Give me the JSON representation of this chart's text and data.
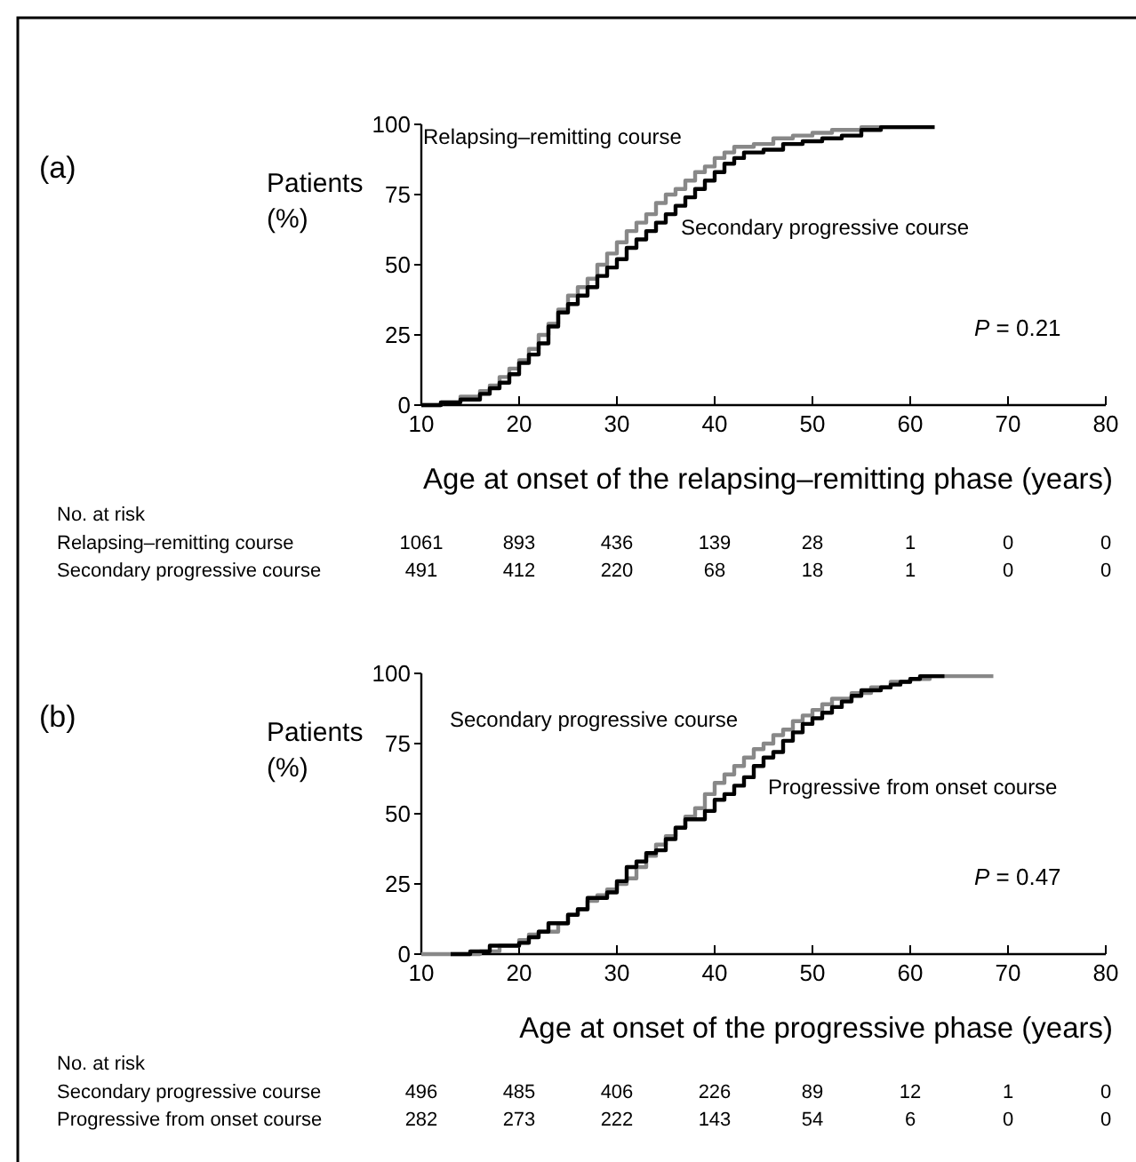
{
  "chart_data": [
    {
      "type": "step",
      "ylabel": "Patients (%)",
      "xlabel": "Age at onset of the relapsing–remitting phase (years)",
      "xlim": [
        10,
        80
      ],
      "xticks": [
        10,
        20,
        30,
        40,
        50,
        60,
        70,
        80
      ],
      "ylim": [
        0,
        100
      ],
      "yticks": [
        0,
        25,
        50,
        75,
        100
      ],
      "grid": false,
      "series": [
        {
          "name": "Relapsing–remitting course",
          "color": "#888888",
          "x": [
            10,
            12,
            14,
            16,
            17,
            18,
            19,
            20,
            21,
            22,
            23,
            24,
            25,
            26,
            27,
            28,
            29,
            30,
            31,
            32,
            33,
            34,
            35,
            36,
            37,
            38,
            39,
            40,
            41,
            42,
            44,
            46,
            48,
            50,
            52,
            55,
            60
          ],
          "values": [
            0,
            1,
            3,
            5,
            7,
            10,
            13,
            16,
            20,
            25,
            29,
            34,
            39,
            42,
            45,
            50,
            54,
            58,
            62,
            65,
            68,
            72,
            75,
            77,
            80,
            83,
            85,
            88,
            90,
            92,
            93,
            95,
            96,
            97,
            98,
            99,
            99
          ]
        },
        {
          "name": "Secondary progressive course",
          "color": "#000000",
          "x": [
            10,
            12,
            14,
            16,
            17,
            18,
            19,
            20,
            21,
            22,
            23,
            24,
            25,
            26,
            27,
            28,
            29,
            30,
            31,
            32,
            33,
            34,
            35,
            36,
            37,
            38,
            39,
            40,
            41,
            42,
            43,
            45,
            47,
            49,
            51,
            53,
            55,
            57,
            62.5
          ],
          "values": [
            0,
            1,
            2,
            4,
            6,
            8,
            11,
            15,
            18,
            22,
            28,
            33,
            36,
            39,
            42,
            46,
            49,
            52,
            56,
            59,
            62,
            65,
            68,
            71,
            74,
            77,
            80,
            83,
            86,
            88,
            90,
            91,
            93,
            94,
            95,
            96,
            98,
            99,
            99
          ]
        }
      ],
      "annotations": [
        "P = 0.21",
        "No. at risk",
        "Relapsing–remitting course",
        "1061",
        "893",
        "436",
        "139",
        "28",
        "1",
        "0",
        "0",
        "Secondary progressive course",
        "491",
        "412",
        "220",
        "68",
        "18",
        "1",
        "0",
        "0",
        "(a)"
      ]
    },
    {
      "type": "step",
      "ylabel": "Patients (%)",
      "xlabel": "Age at onset of the progressive phase (years)",
      "xlim": [
        10,
        80
      ],
      "xticks": [
        10,
        20,
        30,
        40,
        50,
        60,
        70,
        80
      ],
      "ylim": [
        0,
        100
      ],
      "yticks": [
        0,
        25,
        50,
        75,
        100
      ],
      "grid": false,
      "series": [
        {
          "name": "Secondary progressive course",
          "color": "#888888",
          "x": [
            10,
            16,
            18,
            20,
            21,
            22,
            24,
            25,
            26,
            27,
            28,
            29,
            30,
            31,
            32,
            33,
            34,
            35,
            36,
            37,
            38,
            39,
            40,
            41,
            42,
            43,
            44,
            45,
            46,
            47,
            48,
            49,
            50,
            51,
            52,
            54,
            56,
            58,
            60,
            62,
            68.5
          ],
          "values": [
            0,
            1,
            3,
            5,
            7,
            8,
            11,
            14,
            16,
            19,
            21,
            23,
            25,
            27,
            31,
            35,
            39,
            42,
            45,
            49,
            52,
            57,
            61,
            64,
            67,
            70,
            73,
            75,
            78,
            80,
            83,
            85,
            87,
            89,
            91,
            93,
            95,
            97,
            98,
            99,
            99
          ]
        },
        {
          "name": "Progressive from onset course",
          "color": "#000000",
          "x": [
            13,
            15,
            17,
            20,
            21,
            22,
            23,
            25,
            26,
            27,
            29,
            30,
            31,
            32,
            33,
            34,
            35,
            36,
            37,
            39,
            40,
            41,
            42,
            43,
            44,
            45,
            46,
            47,
            48,
            49,
            50,
            51,
            52,
            53,
            54,
            55,
            57,
            58,
            59,
            60,
            61,
            63.5
          ],
          "values": [
            0,
            1,
            3,
            4,
            6,
            8,
            11,
            14,
            16,
            20,
            22,
            26,
            31,
            33,
            36,
            37,
            41,
            45,
            48,
            51,
            55,
            57,
            60,
            63,
            67,
            70,
            72,
            76,
            79,
            82,
            84,
            86,
            88,
            90,
            92,
            94,
            95,
            96,
            97,
            98,
            99,
            99
          ]
        }
      ],
      "annotations": [
        "P = 0.47",
        "No. at risk",
        "Secondary progressive course",
        "496",
        "485",
        "406",
        "226",
        "89",
        "12",
        "1",
        "0",
        "Progressive from onset course",
        "282",
        "273",
        "222",
        "143",
        "54",
        "6",
        "0",
        "0",
        "(b)"
      ]
    }
  ]
}
